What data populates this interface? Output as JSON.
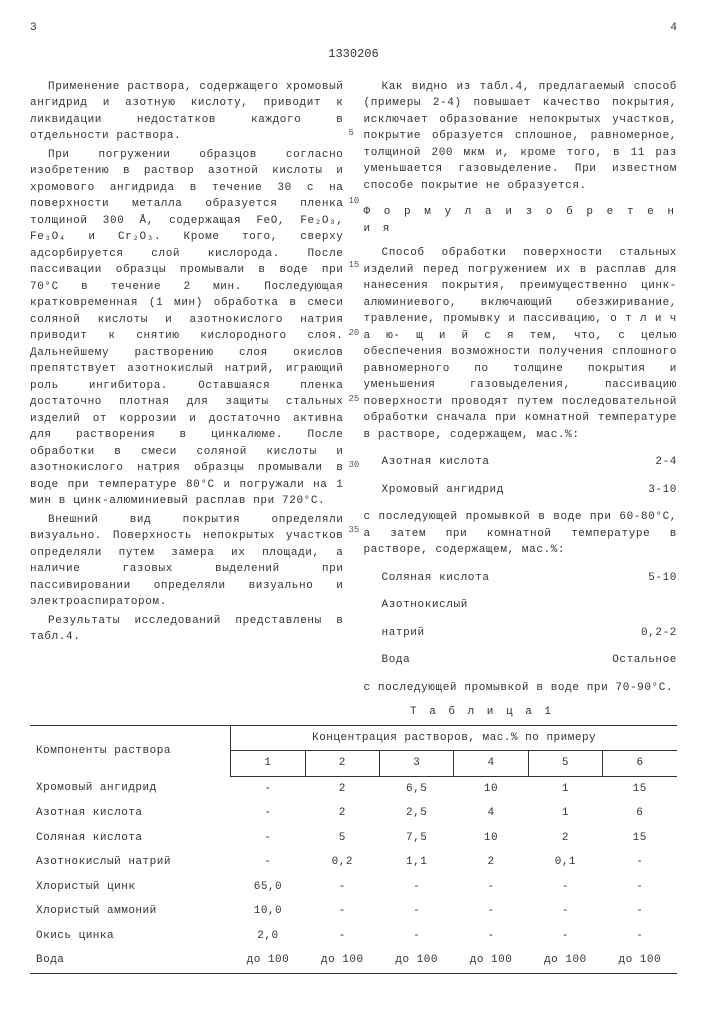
{
  "page_left_num": "3",
  "doc_number": "1330206",
  "page_right_num": "4",
  "left_paragraphs": [
    "Применение раствора, содержащего хромовый ангидрид и азотную кислоту, приводит к ликвидации недостатков каждого в отдельности раствора.",
    "При погружении образцов согласно изобретению в раствор азотной кислоты и хромового ангидрида в течение 30 с на поверхности металла образуется пленка толщиной 300 Å, содержащая FeO, Fe₂O₃, Fe₃O₄ и Cr₂O₃. Кроме того, сверху адсорбируется слой кислорода. После пассивации образцы промывали в воде при 70°С в течение 2 мин. Последующая кратковременная (1 мин) обработка в смеси соляной кислоты и азотнокислого натрия приводит к снятию кислородного слоя. Дальнейшему растворению слоя окислов препятствует азотнокислый натрий, играющий роль ингибитора. Оставшаяся пленка достаточно плотная для защиты стальных изделий от коррозии и достаточно активна для растворения в цинкалюме. После обработки в смеси соляной кислоты и азотнокислого натрия образцы промывали в воде при температуре 80°С и погружали на 1 мин в цинк-алюминиевый расплав при 720°С.",
    "Внешний вид покрытия определяли визуально. Поверхность непокрытых участков определяли путем замера их площади, а наличие газовых выделений при пассивировании определяли визуально и электроаспиратором.",
    "Результаты исследований представлены в табл.4."
  ],
  "right": {
    "para1": "Как видно из табл.4, предлагаемый способ (примеры 2-4) повышает качество покрытия, исключает образование непокрытых участков, покрытие образуется сплошное, равномерное, толщиной 200 мкм и, кроме того, в 11 раз уменьшается газовыделение. При известном способе покрытие не образуется.",
    "formula_heading": "Ф о р м у л а  и з о б р е т е н и я",
    "para2": "Способ обработки поверхности стальных изделий перед погружением их в расплав для нанесения покрытия, преимущественно цинк-алюминиевого, включающий обезжиривание, травление, промывку и пассивацию, о т л и ч а ю- щ и й с я  тем, что, с целью обеспечения возможности получения сплошного равномерного по толщине покрытия и уменьшения газовыделения, пассивацию поверхности проводят путем последовательной обработки сначала при комнатной температуре в растворе, содержащем, мас.%:",
    "recipe1": [
      {
        "name": "Азотная кислота",
        "val": "2-4"
      },
      {
        "name": "Хромовый ангидрид",
        "val": "3-10"
      }
    ],
    "para3": "с последующей промывкой в воде при 60-80°С, а затем при комнатной температуре в растворе, содержащем, мас.%:",
    "recipe2": [
      {
        "name": "Соляная кислота",
        "val": "5-10"
      },
      {
        "name": "Азотнокислый",
        "val": ""
      },
      {
        "name": "натрий",
        "val": "0,2-2"
      },
      {
        "name": "Вода",
        "val": "Остальное"
      }
    ],
    "para4": "с последующей промывкой в воде при 70-90°С."
  },
  "line_nums": [
    "5",
    "10",
    "15",
    "20",
    "25",
    "30",
    "35"
  ],
  "table": {
    "caption": "Т а б л и ц а 1",
    "header_group": "Концентрация растворов, мас.% по примеру",
    "row_header": "Компоненты раствора",
    "col_nums": [
      "1",
      "2",
      "3",
      "4",
      "5",
      "6"
    ],
    "rows": [
      {
        "name": "Хромовый ангидрид",
        "vals": [
          "-",
          "2",
          "6,5",
          "10",
          "1",
          "15"
        ]
      },
      {
        "name": "Азотная кислота",
        "vals": [
          "-",
          "2",
          "2,5",
          "4",
          "1",
          "6"
        ]
      },
      {
        "name": "Соляная кислота",
        "vals": [
          "-",
          "5",
          "7,5",
          "10",
          "2",
          "15"
        ]
      },
      {
        "name": "Азотнокислый натрий",
        "vals": [
          "-",
          "0,2",
          "1,1",
          "2",
          "0,1",
          "-"
        ]
      },
      {
        "name": "Хлористый цинк",
        "vals": [
          "65,0",
          "-",
          "-",
          "-",
          "-",
          "-"
        ]
      },
      {
        "name": "Хлористый аммоний",
        "vals": [
          "10,0",
          "-",
          "-",
          "-",
          "-",
          "-"
        ]
      },
      {
        "name": "Окись цинка",
        "vals": [
          "2,0",
          "-",
          "-",
          "-",
          "-",
          "-"
        ]
      },
      {
        "name": "Вода",
        "vals": [
          "до 100",
          "до 100",
          "до 100",
          "до 100",
          "до 100",
          "до 100"
        ]
      }
    ]
  }
}
